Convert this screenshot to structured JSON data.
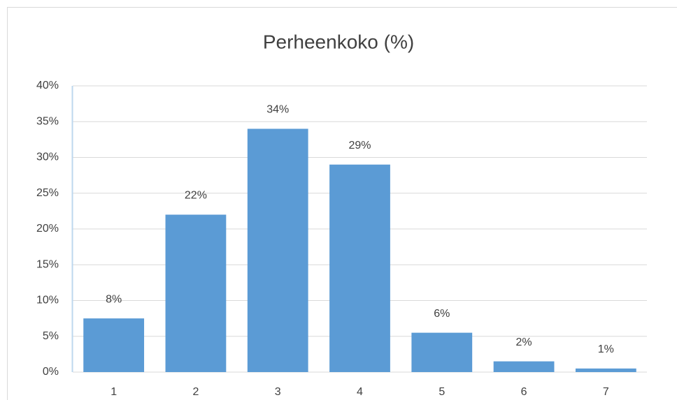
{
  "chart_data": {
    "type": "bar",
    "title": "Perheenkoko (%)",
    "categories": [
      "1",
      "2",
      "3",
      "4",
      "5",
      "6",
      "7"
    ],
    "values": [
      7.5,
      22,
      34,
      29,
      5.5,
      1.5,
      0.5
    ],
    "value_labels": [
      "8%",
      "22%",
      "34%",
      "29%",
      "6%",
      "2%",
      "1%"
    ],
    "color": "#5b9bd5",
    "ylim": [
      0,
      40
    ],
    "yticks": [
      {
        "value": 0,
        "label": "0%"
      },
      {
        "value": 5,
        "label": "5%"
      },
      {
        "value": 10,
        "label": "10%"
      },
      {
        "value": 15,
        "label": "15%"
      },
      {
        "value": 20,
        "label": "20%"
      },
      {
        "value": 25,
        "label": "25%"
      },
      {
        "value": 30,
        "label": "30%"
      },
      {
        "value": 35,
        "label": "35%"
      },
      {
        "value": 40,
        "label": "40%"
      }
    ],
    "grid": true
  }
}
